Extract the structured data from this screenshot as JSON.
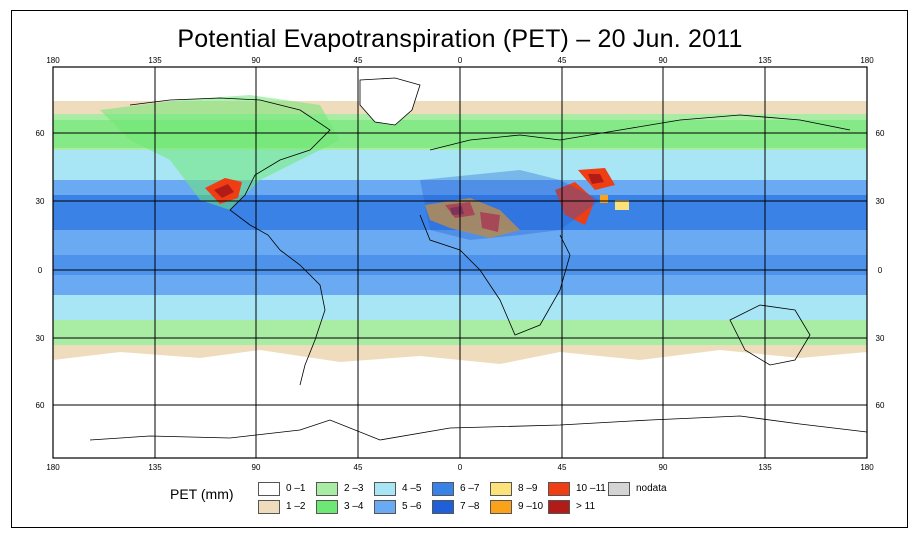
{
  "title": "Potential Evapotranspiration (PET) – 20 Jun. 2011",
  "lon_ticks": [
    "180",
    "135",
    "90",
    "45",
    "0",
    "45",
    "90",
    "135",
    "180"
  ],
  "lat_ticks": [
    "60",
    "30",
    "0",
    "30",
    "60"
  ],
  "legend": {
    "title": "PET (mm)",
    "items": [
      {
        "label": "0 –1",
        "color": "#ffffff"
      },
      {
        "label": "1 –2",
        "color": "#eedcbd"
      },
      {
        "label": "2 –3",
        "color": "#a9eca4"
      },
      {
        "label": "3 –4",
        "color": "#6ee874"
      },
      {
        "label": "4 –5",
        "color": "#a8e6f5"
      },
      {
        "label": "5 –6",
        "color": "#6aaaf2"
      },
      {
        "label": "6 –7",
        "color": "#3b82e6"
      },
      {
        "label": "7 –8",
        "color": "#1f5fd8"
      },
      {
        "label": "8 –9",
        "color": "#fbe27a"
      },
      {
        "label": "9 –10",
        "color": "#f9a21a"
      },
      {
        "label": "10 –11",
        "color": "#ef3d14"
      },
      {
        "label": "> 11",
        "color": "#b21c18"
      },
      {
        "label": "nodata",
        "color": "#d4d4d4"
      }
    ]
  }
}
